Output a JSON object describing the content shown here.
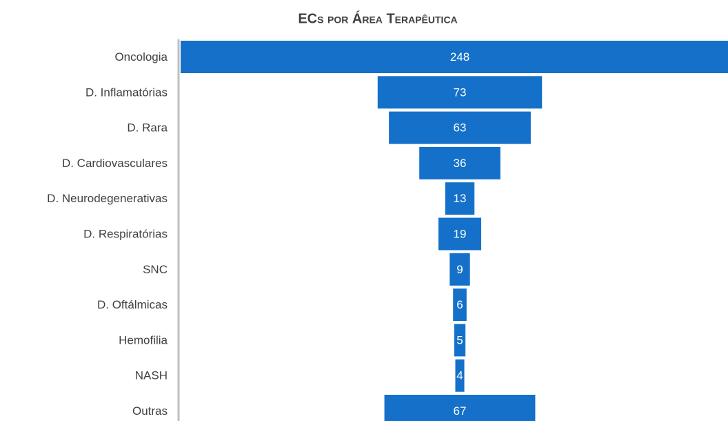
{
  "chart_data": {
    "type": "funnel",
    "title": "ECs por Área Terapêutica",
    "categories": [
      "Oncologia",
      "D. Inflamatórias",
      "D. Rara",
      "D. Cardiovasculares",
      "D. Neurodegenerativas",
      "D. Respiratórias",
      "SNC",
      "D. Oftálmicas",
      "Hemofilia",
      "NASH",
      "Outras"
    ],
    "values": [
      248,
      73,
      63,
      36,
      13,
      19,
      9,
      6,
      5,
      4,
      67
    ],
    "color": "#1470c8"
  }
}
